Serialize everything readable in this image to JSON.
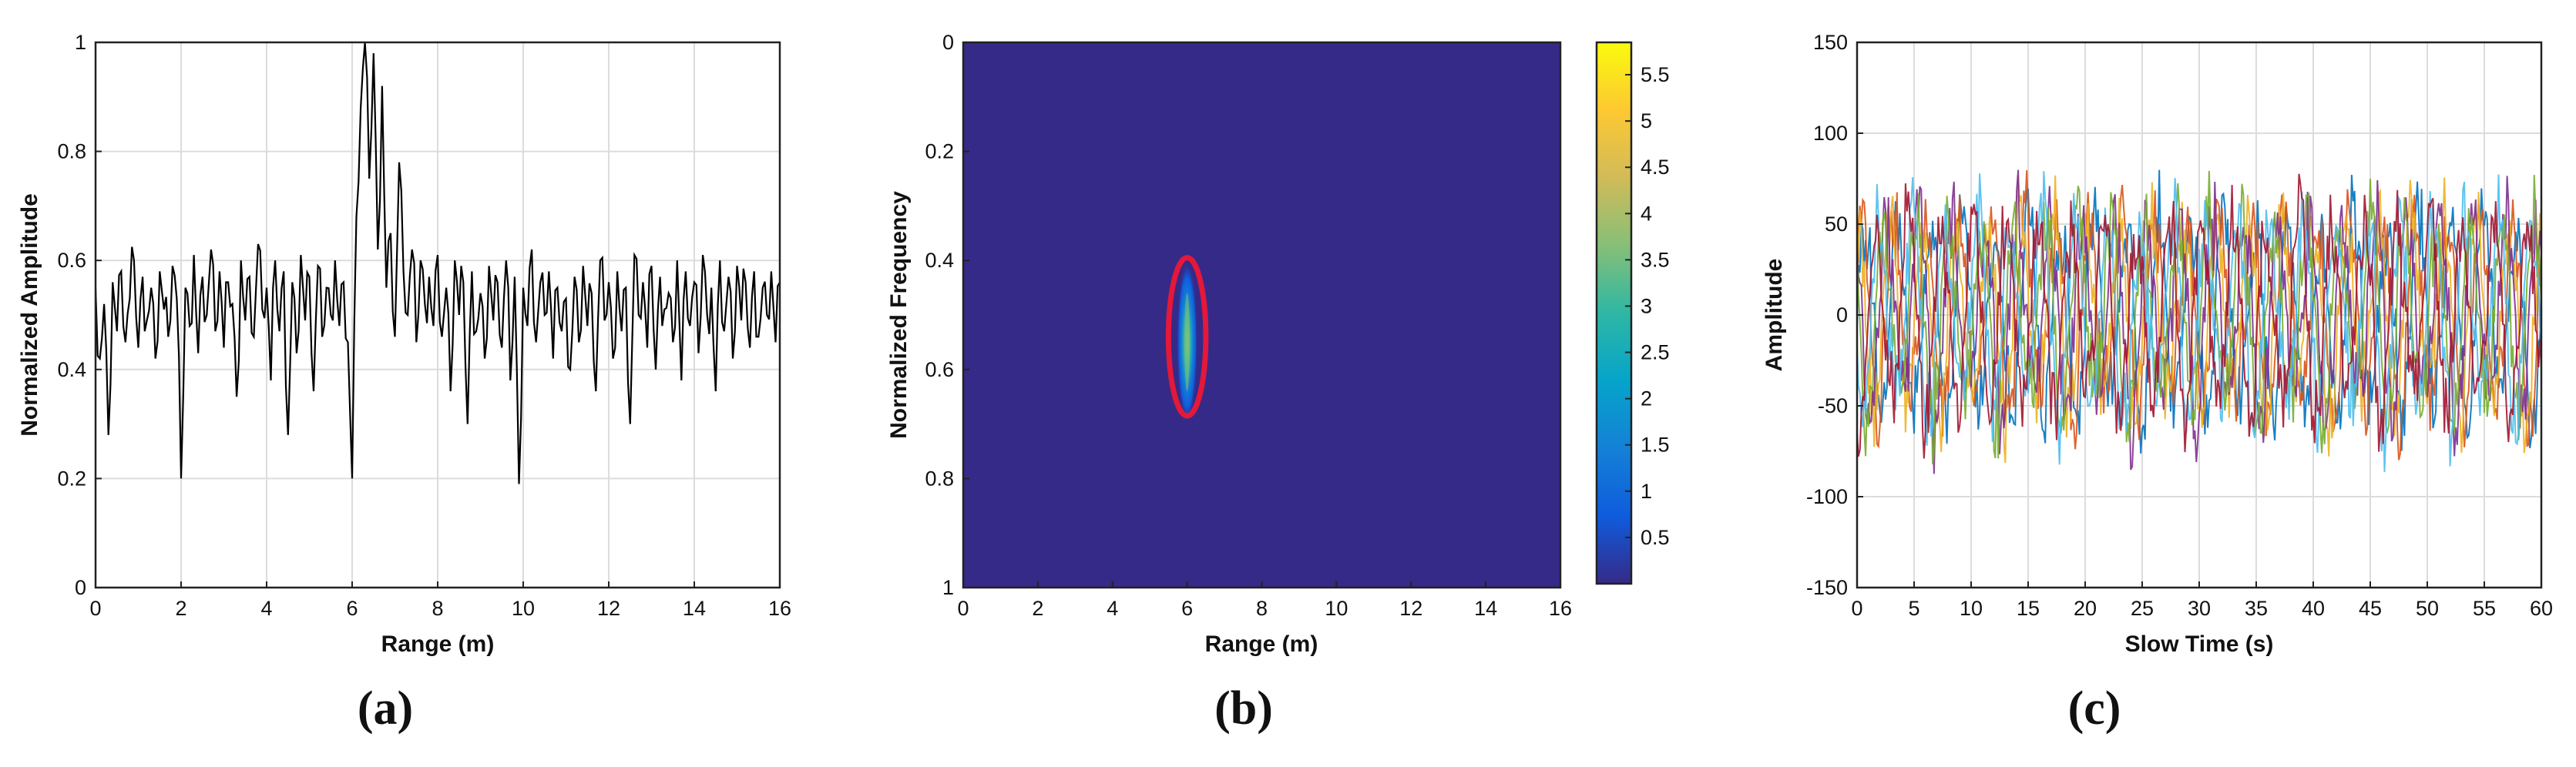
{
  "chart_data": [
    {
      "type": "line",
      "panel_label": "(a)",
      "xlabel": "Range (m)",
      "ylabel": "Normalized Amplitude",
      "xlim": [
        0,
        16
      ],
      "ylim": [
        0,
        1
      ],
      "xticks": [
        "0",
        "2",
        "4",
        "6",
        "8",
        "10",
        "12",
        "14",
        "16"
      ],
      "yticks": [
        "0",
        "0.2",
        "0.4",
        "0.6",
        "0.8",
        "1"
      ],
      "grid": true,
      "line_color": "#000000",
      "series": [
        {
          "x": [
            0,
            0.1,
            0.2,
            0.3,
            0.4,
            0.5,
            0.6,
            0.7,
            0.8,
            0.9,
            1.0,
            1.1,
            1.2,
            1.3,
            1.4,
            1.5,
            1.6,
            1.7,
            1.8,
            1.9,
            2.0,
            2.1,
            2.2,
            2.3,
            2.4,
            2.5,
            2.6,
            2.7,
            2.8,
            2.9,
            3.0,
            3.1,
            3.2,
            3.3,
            3.4,
            3.5,
            3.6,
            3.7,
            3.8,
            3.9,
            4.0,
            4.1,
            4.2,
            4.3,
            4.4,
            4.5,
            4.6,
            4.7,
            4.8,
            4.9,
            5.0,
            5.1,
            5.2,
            5.3,
            5.4,
            5.5,
            5.6,
            5.7,
            5.8,
            5.9,
            6.0,
            6.1,
            6.2,
            6.3,
            6.4,
            6.5,
            6.6,
            6.7,
            6.8,
            6.9,
            7.0,
            7.1,
            7.2,
            7.3,
            7.4,
            7.5,
            7.6,
            7.7,
            7.8,
            7.9,
            8.0,
            8.1,
            8.2,
            8.3,
            8.4,
            8.5,
            8.6,
            8.7,
            8.8,
            8.9,
            9.0,
            9.1,
            9.2,
            9.3,
            9.4,
            9.5,
            9.6,
            9.7,
            9.8,
            9.9,
            10.0,
            10.1,
            10.2,
            10.3,
            10.4,
            10.5,
            10.6,
            10.7,
            10.8,
            10.9,
            11.0,
            11.1,
            11.2,
            11.3,
            11.4,
            11.5,
            11.6,
            11.7,
            11.8,
            11.9,
            12.0,
            12.1,
            12.2,
            12.3,
            12.4,
            12.5,
            12.6,
            12.7,
            12.8,
            12.9,
            13.0,
            13.1,
            13.2,
            13.3,
            13.4,
            13.5,
            13.6,
            13.7,
            13.8,
            13.9,
            14.0,
            14.1,
            14.2,
            14.3,
            14.4,
            14.5,
            14.6,
            14.7,
            14.8,
            14.9,
            15.0,
            15.1,
            15.2,
            15.3,
            15.4,
            15.5,
            15.6,
            15.7,
            15.8,
            15.9,
            16.0
          ],
          "y": [
            0.55,
            0.42,
            0.52,
            0.28,
            0.56,
            0.47,
            0.58,
            0.45,
            0.53,
            0.6,
            0.44,
            0.57,
            0.49,
            0.55,
            0.42,
            0.58,
            0.51,
            0.46,
            0.59,
            0.53,
            0.2,
            0.55,
            0.48,
            0.61,
            0.43,
            0.57,
            0.5,
            0.62,
            0.47,
            0.58,
            0.44,
            0.56,
            0.52,
            0.35,
            0.6,
            0.49,
            0.57,
            0.46,
            0.63,
            0.51,
            0.55,
            0.38,
            0.6,
            0.47,
            0.58,
            0.28,
            0.56,
            0.43,
            0.61,
            0.49,
            0.57,
            0.36,
            0.59,
            0.46,
            0.55,
            0.5,
            0.6,
            0.48,
            0.56,
            0.45,
            0.2,
            0.68,
            0.88,
            1.0,
            0.75,
            0.98,
            0.62,
            0.92,
            0.55,
            0.65,
            0.46,
            0.78,
            0.58,
            0.5,
            0.62,
            0.45,
            0.6,
            0.52,
            0.57,
            0.48,
            0.61,
            0.46,
            0.55,
            0.36,
            0.6,
            0.5,
            0.56,
            0.3,
            0.58,
            0.47,
            0.54,
            0.42,
            0.59,
            0.49,
            0.56,
            0.44,
            0.6,
            0.38,
            0.57,
            0.19,
            0.55,
            0.48,
            0.62,
            0.45,
            0.56,
            0.5,
            0.58,
            0.42,
            0.55,
            0.47,
            0.53,
            0.4,
            0.57,
            0.45,
            0.59,
            0.48,
            0.54,
            0.36,
            0.6,
            0.49,
            0.56,
            0.42,
            0.58,
            0.47,
            0.55,
            0.3,
            0.61,
            0.5,
            0.56,
            0.44,
            0.59,
            0.4,
            0.57,
            0.51,
            0.54,
            0.45,
            0.6,
            0.38,
            0.58,
            0.48,
            0.56,
            0.43,
            0.61,
            0.5,
            0.55,
            0.36,
            0.6,
            0.47,
            0.57,
            0.42,
            0.59,
            0.49,
            0.56,
            0.44,
            0.58,
            0.46,
            0.55,
            0.5,
            0.58,
            0.45,
            0.56
          ]
        }
      ]
    },
    {
      "type": "heatmap",
      "panel_label": "(b)",
      "xlabel": "Range (m)",
      "ylabel": "Normalized Frequency",
      "xlim": [
        0,
        16
      ],
      "ylim": [
        1,
        0
      ],
      "xticks": [
        "0",
        "2",
        "4",
        "6",
        "8",
        "10",
        "12",
        "14",
        "16"
      ],
      "yticks": [
        "0",
        "0.2",
        "0.4",
        "0.6",
        "0.8",
        "1"
      ],
      "background_color": "#352a87",
      "hotspot": {
        "x_center": 6.0,
        "y_center": 0.55,
        "x_halfwidth": 0.28,
        "y_halfwidth": 0.15,
        "peak": 5.8
      },
      "highlight": {
        "shape": "ellipse",
        "color": "#e3183a",
        "x_center": 6.0,
        "y_center": 0.54,
        "x_radius": 0.5,
        "y_radius": 0.145
      },
      "colorbar": {
        "ticks": [
          "0.5",
          "1",
          "1.5",
          "2",
          "2.5",
          "3",
          "3.5",
          "4",
          "4.5",
          "5",
          "5.5"
        ],
        "tick_values": [
          0.5,
          1,
          1.5,
          2,
          2.5,
          3,
          3.5,
          4,
          4.5,
          5,
          5.5
        ],
        "range": [
          0,
          5.85
        ],
        "colormap": "parula",
        "stops": [
          "#352a87",
          "#0f5cdd",
          "#1481d6",
          "#06a4ca",
          "#2eb7a4",
          "#87bf77",
          "#d1bb59",
          "#fec832",
          "#f9fb0e"
        ]
      }
    },
    {
      "type": "line",
      "panel_label": "(c)",
      "xlabel": "Slow Time (s)",
      "ylabel": "Amplitude",
      "xlim": [
        0,
        60
      ],
      "ylim": [
        -150,
        150
      ],
      "xticks": [
        "0",
        "5",
        "10",
        "15",
        "20",
        "25",
        "30",
        "35",
        "40",
        "45",
        "50",
        "55",
        "60"
      ],
      "yticks": [
        "-150",
        "-100",
        "-50",
        "0",
        "50",
        "100",
        "150"
      ],
      "grid": true,
      "series_colors": [
        "#0072bd",
        "#d95319",
        "#edb120",
        "#7e2f8e",
        "#77ac30",
        "#4dbeee",
        "#a2142f"
      ],
      "series_count": 7
    }
  ]
}
